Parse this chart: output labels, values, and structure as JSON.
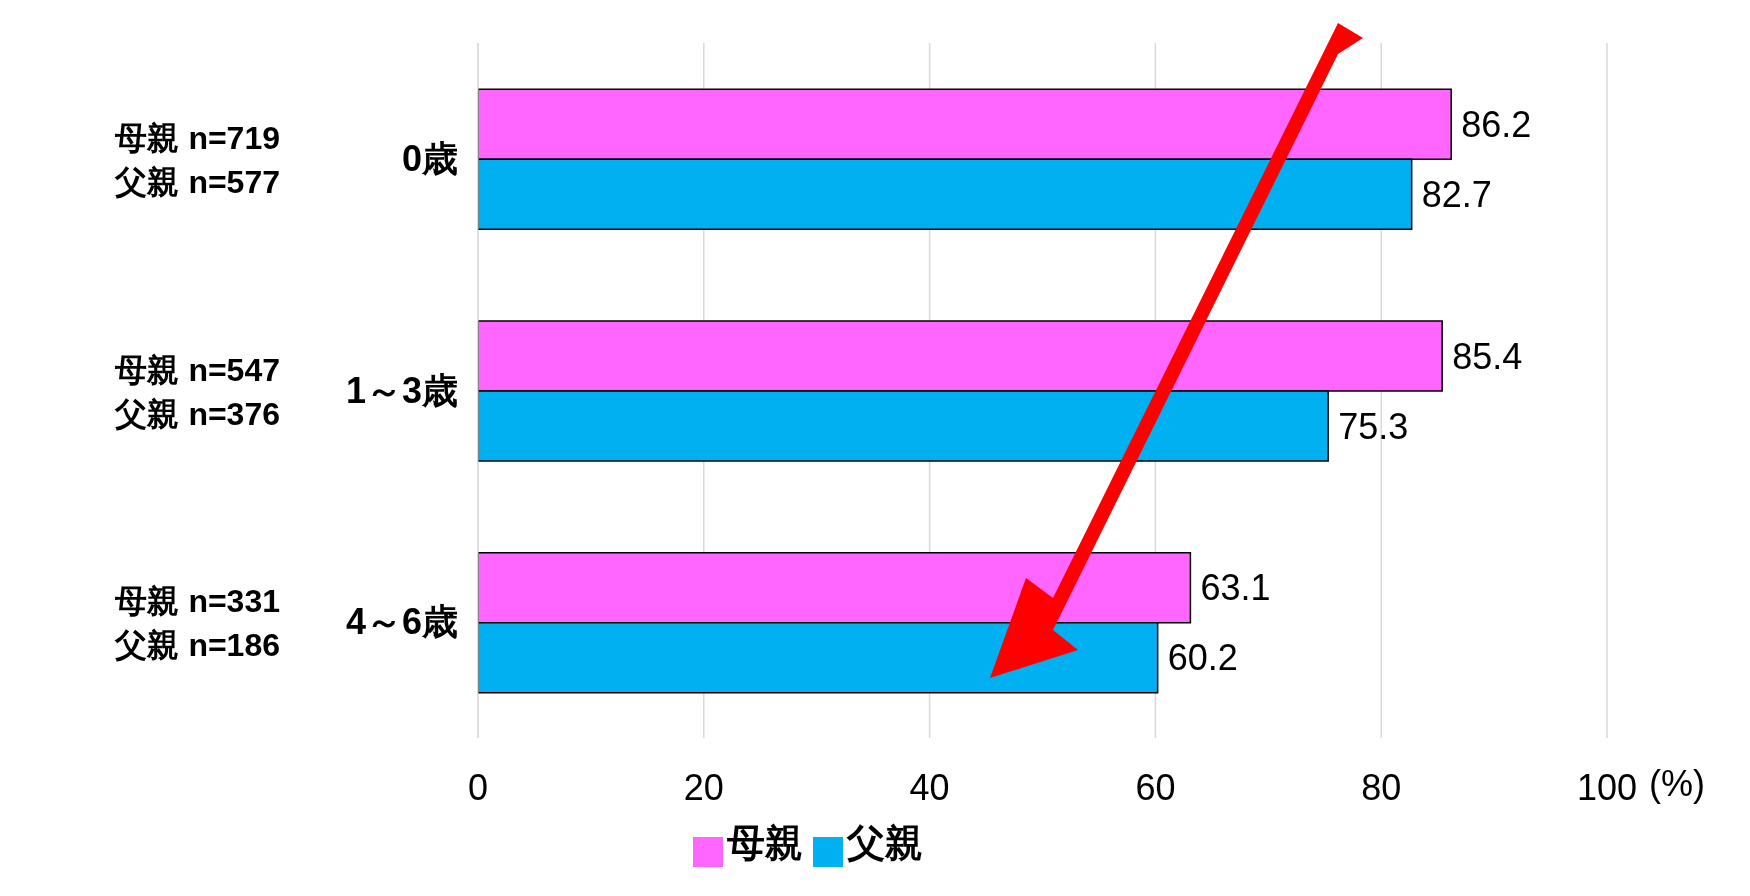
{
  "chart_data": {
    "type": "bar",
    "orientation": "horizontal",
    "xlabel": "(%)",
    "categories": [
      "0歳",
      "1～3歳",
      "4～6歳"
    ],
    "series": [
      {
        "name": "母親",
        "color": "#ff66ff",
        "values": [
          86.2,
          85.4,
          63.1
        ]
      },
      {
        "name": "父親",
        "color": "#00b0f0",
        "values": [
          82.7,
          75.3,
          60.2
        ]
      }
    ],
    "xlim": [
      0,
      100
    ],
    "xticks": [
      0,
      20,
      40,
      60,
      80,
      100
    ],
    "grid": "x",
    "legend": "bottom",
    "data_labels": true,
    "annotations": [
      "母親 n=719",
      "父親 n=577",
      "母親 n=547",
      "父親 n=376",
      "母親 n=331",
      "父親 n=186"
    ]
  }
}
